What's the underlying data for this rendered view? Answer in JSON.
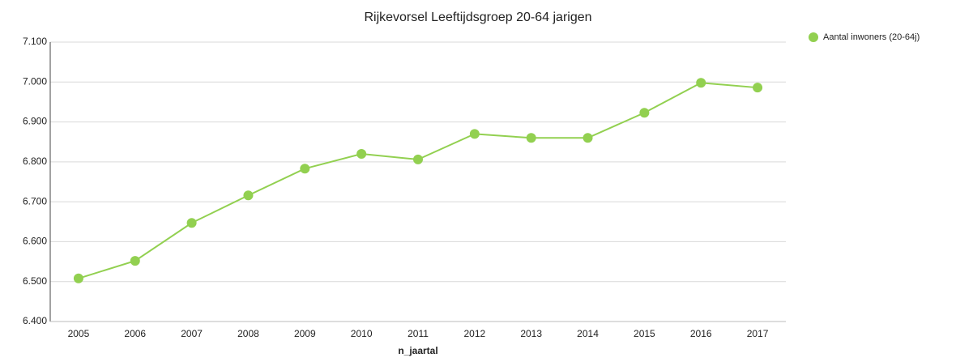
{
  "chart_data": {
    "type": "line",
    "title": "Rijkevorsel  Leeftijdsgroep 20-64 jarigen",
    "x_label": "n_jaartal",
    "categories": [
      "2005",
      "2006",
      "2007",
      "2008",
      "2009",
      "2010",
      "2011",
      "2012",
      "2013",
      "2014",
      "2015",
      "2016",
      "2017"
    ],
    "series": [
      {
        "name": "Aantal inwoners  (20-64j)",
        "color": "#92d050",
        "values": [
          6508,
          6552,
          6647,
          6716,
          6783,
          6820,
          6806,
          6870,
          6860,
          6860,
          6923,
          6998,
          6986
        ]
      }
    ],
    "ylim": [
      6400,
      7100
    ],
    "yticks": [
      {
        "value": 6400,
        "label": "6.400"
      },
      {
        "value": 6500,
        "label": "6.500"
      },
      {
        "value": 6600,
        "label": "6.600"
      },
      {
        "value": 6700,
        "label": "6.700"
      },
      {
        "value": 6800,
        "label": "6.800"
      },
      {
        "value": 6900,
        "label": "6.900"
      },
      {
        "value": 7000,
        "label": "7.000"
      },
      {
        "value": 7100,
        "label": "7.100"
      }
    ],
    "grid": true,
    "legend": "right"
  }
}
